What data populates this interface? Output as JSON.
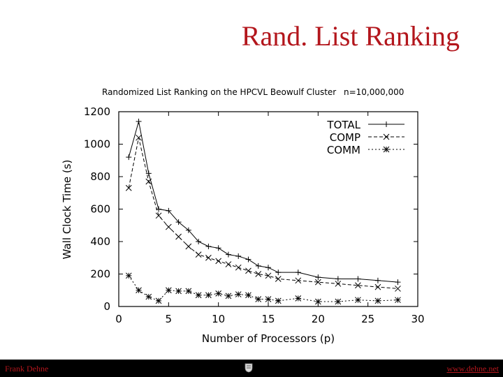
{
  "slide": {
    "title": "Rand. List Ranking",
    "footer_left": "Frank Dehne",
    "footer_right": "www.dehne.net",
    "logo_icon": "university-crest-icon",
    "title_color": "#b3161c"
  },
  "chart_data": {
    "type": "line",
    "title": "Randomized List Ranking on the HPCVL Beowulf Cluster",
    "subtitle": "n=10,000,000",
    "xlabel": "Number of Processors (p)",
    "ylabel": "Wall Clock Time (s)",
    "xlim": [
      0,
      30
    ],
    "ylim": [
      0,
      1200
    ],
    "xticks": [
      0,
      5,
      10,
      15,
      20,
      25,
      30
    ],
    "yticks": [
      0,
      200,
      400,
      600,
      800,
      1000,
      1200
    ],
    "grid": false,
    "legend_position": "top-right",
    "series": [
      {
        "name": "TOTAL",
        "marker": "plus",
        "dash": "solid",
        "x": [
          1,
          2,
          3,
          4,
          5,
          6,
          7,
          8,
          9,
          10,
          11,
          12,
          13,
          14,
          15,
          16,
          18,
          20,
          22,
          24,
          26,
          28
        ],
        "y": [
          920,
          1140,
          820,
          600,
          590,
          520,
          470,
          400,
          370,
          360,
          320,
          310,
          290,
          250,
          240,
          210,
          210,
          180,
          170,
          170,
          160,
          150
        ]
      },
      {
        "name": "COMP",
        "marker": "x",
        "dash": "dashed",
        "x": [
          1,
          2,
          3,
          4,
          5,
          6,
          7,
          8,
          9,
          10,
          11,
          12,
          13,
          14,
          15,
          16,
          18,
          20,
          22,
          24,
          26,
          28
        ],
        "y": [
          730,
          1040,
          770,
          560,
          490,
          430,
          370,
          320,
          300,
          280,
          260,
          240,
          220,
          200,
          190,
          170,
          160,
          150,
          140,
          130,
          120,
          110
        ]
      },
      {
        "name": "COMM",
        "marker": "star",
        "dash": "dotted",
        "x": [
          1,
          2,
          3,
          4,
          5,
          6,
          7,
          8,
          9,
          10,
          11,
          12,
          13,
          14,
          15,
          16,
          18,
          20,
          22,
          24,
          26,
          28
        ],
        "y": [
          190,
          100,
          60,
          35,
          100,
          95,
          95,
          70,
          70,
          80,
          65,
          75,
          70,
          45,
          45,
          35,
          50,
          30,
          30,
          40,
          35,
          40
        ]
      }
    ]
  }
}
